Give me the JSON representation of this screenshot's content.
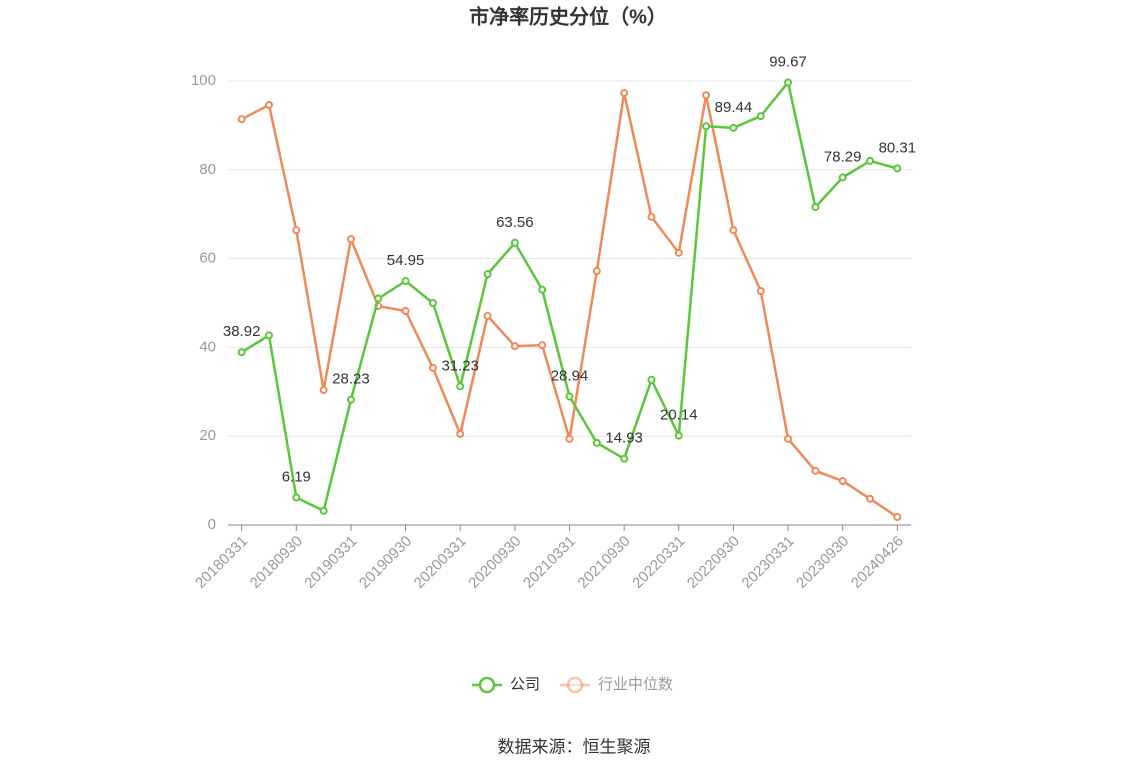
{
  "chart_data": {
    "type": "line",
    "title": "市净率历史分位（%）",
    "categories": [
      "20180331",
      null,
      "20180930",
      null,
      "20190331",
      null,
      "20190930",
      null,
      "20200331",
      null,
      "20200930",
      null,
      "20210331",
      null,
      "20210930",
      null,
      "20220331",
      null,
      "20220930",
      null,
      "20230331",
      null,
      "20230930",
      null,
      "20240426"
    ],
    "series": [
      {
        "name": "公司",
        "color": "#5ac63a",
        "values": [
          38.92,
          42.7,
          6.19,
          3.2,
          28.23,
          51,
          54.95,
          50,
          31.23,
          56.5,
          63.56,
          53,
          28.94,
          18.5,
          14.93,
          32.7,
          20.14,
          89.8,
          89.44,
          92.1,
          99.67,
          71.6,
          78.29,
          82,
          80.31
        ],
        "value_labels": [
          "38.92",
          null,
          "6.19",
          null,
          "28.23",
          null,
          "54.95",
          null,
          "31.23",
          null,
          "63.56",
          null,
          "28.94",
          null,
          "14.93",
          null,
          "20.14",
          null,
          "89.44",
          null,
          "99.67",
          null,
          "78.29",
          null,
          "80.31"
        ]
      },
      {
        "name": "行业中位数",
        "color": "#f0895a",
        "values": [
          91.4,
          94.6,
          66.4,
          30.4,
          64.4,
          49.3,
          48.2,
          35.4,
          20.5,
          47.1,
          40.3,
          40.5,
          19.4,
          57.2,
          97.3,
          69.4,
          61.3,
          96.8,
          66.4,
          52.7,
          19.4,
          12.2,
          9.9,
          5.9,
          1.8
        ]
      }
    ],
    "ylim": [
      0,
      100
    ],
    "yticks": [
      0,
      20,
      40,
      60,
      80,
      100
    ],
    "grid": true,
    "legend": "bottom",
    "source": "数据来源：恒生聚源"
  }
}
